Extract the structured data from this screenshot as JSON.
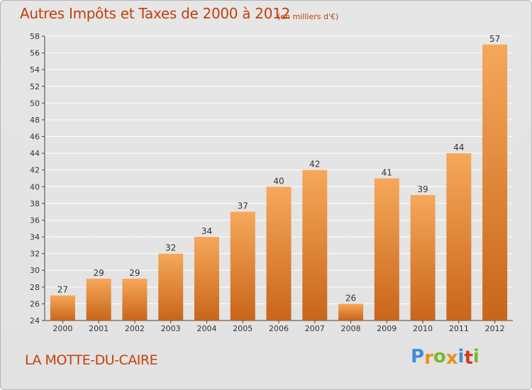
{
  "header": {
    "title": "Autres Impôts et Taxes de 2000 à 2012",
    "subtitle": "(en milliers d'€)"
  },
  "footer": {
    "place": "LA MOTTE-DU-CAIRE",
    "logo_text": "Proxiti",
    "logo_colors": [
      "#3a8fd8",
      "#e8901c",
      "#7ab829",
      "#e8901c",
      "#3a8fd8",
      "#d8381c",
      "#7ab829"
    ]
  },
  "colors": {
    "bar_light": "#f6a85a",
    "bar_dark": "#c8651a",
    "grid": "#ffffff",
    "text": "#333333",
    "accent": "#c2410c"
  },
  "chart_data": {
    "type": "bar",
    "title": "Autres Impôts et Taxes de 2000 à 2012",
    "subtitle": "(en milliers d'€)",
    "xlabel": "",
    "ylabel": "",
    "categories": [
      "2000",
      "2001",
      "2002",
      "2003",
      "2004",
      "2005",
      "2006",
      "2007",
      "2008",
      "2009",
      "2010",
      "2011",
      "2012"
    ],
    "values": [
      27,
      29,
      29,
      32,
      34,
      37,
      40,
      42,
      26,
      41,
      39,
      44,
      57
    ],
    "ylim": [
      24,
      58
    ],
    "yticks": [
      24,
      26,
      28,
      30,
      32,
      34,
      36,
      38,
      40,
      42,
      44,
      46,
      48,
      50,
      52,
      54,
      56,
      58
    ],
    "grid": true,
    "data_labels": true
  }
}
